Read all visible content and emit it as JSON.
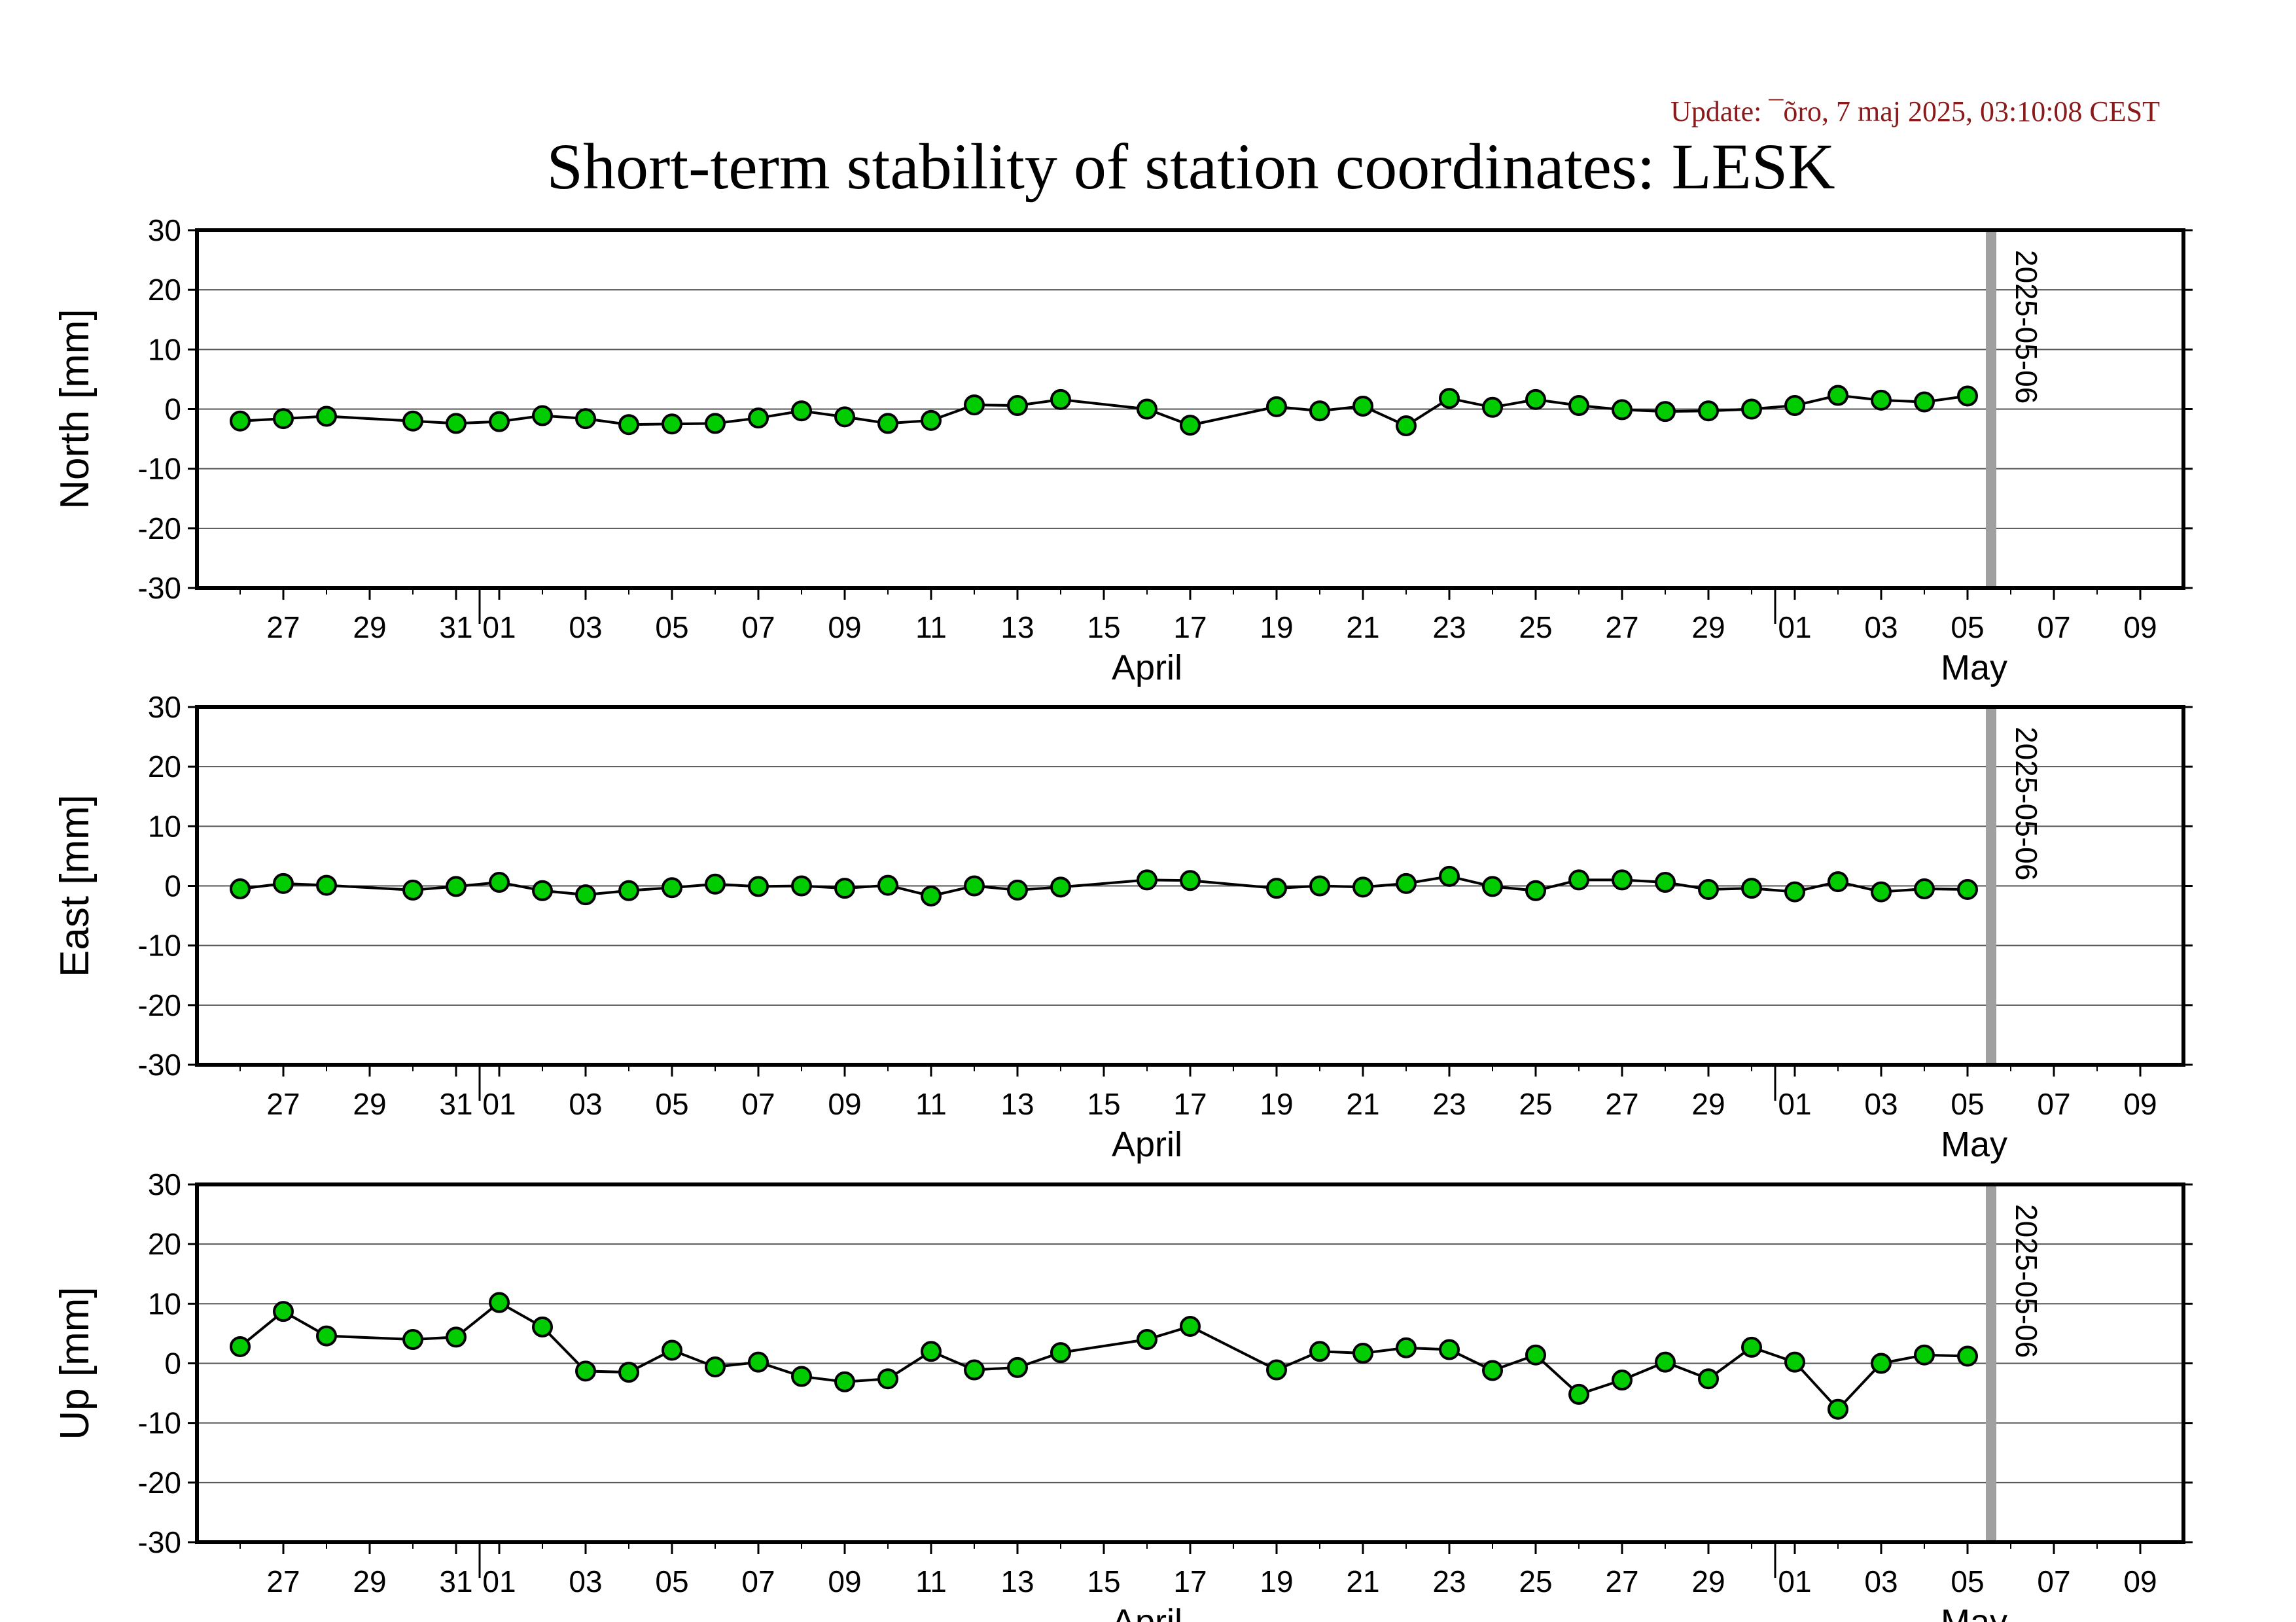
{
  "update_text": "Update: ¯õro, 7 maj 2025, 03:10:08 CEST",
  "title": "Short-term stability of station coordinates: LESK",
  "colors": {
    "update_text": "#8b1a1a",
    "marker_fill": "#00cc00",
    "marker_edge": "#000000",
    "line": "#000000",
    "grid": "#555555",
    "date_marker": "#a0a0a0"
  },
  "chart_data": [
    {
      "type": "line",
      "ylabel": "North [mm]",
      "ylim": [
        -30,
        30
      ],
      "yticks": [
        30,
        20,
        10,
        0,
        -10,
        -20,
        -30
      ],
      "xlim": [
        "2025-03-25",
        "2025-05-10"
      ],
      "x_tick_labels": [
        "27",
        "29",
        "31",
        "01",
        "03",
        "05",
        "07",
        "09",
        "11",
        "13",
        "15",
        "17",
        "19",
        "21",
        "23",
        "25",
        "27",
        "29",
        "01",
        "03",
        "05",
        "07",
        "09"
      ],
      "month_labels": [
        "April",
        "May"
      ],
      "grid": "horizontal",
      "marker_date": "2025-05-06",
      "x": [
        "2025-03-26",
        "2025-03-27",
        "2025-03-28",
        "2025-03-30",
        "2025-03-31",
        "2025-04-01",
        "2025-04-02",
        "2025-04-03",
        "2025-04-04",
        "2025-04-05",
        "2025-04-06",
        "2025-04-07",
        "2025-04-08",
        "2025-04-09",
        "2025-04-10",
        "2025-04-11",
        "2025-04-12",
        "2025-04-13",
        "2025-04-14",
        "2025-04-16",
        "2025-04-17",
        "2025-04-19",
        "2025-04-20",
        "2025-04-21",
        "2025-04-22",
        "2025-04-23",
        "2025-04-24",
        "2025-04-25",
        "2025-04-26",
        "2025-04-27",
        "2025-04-28",
        "2025-04-29",
        "2025-04-30",
        "2025-05-01",
        "2025-05-02",
        "2025-05-03",
        "2025-05-04",
        "2025-05-05"
      ],
      "values": [
        -2.0,
        -1.6,
        -1.2,
        -2.0,
        -2.4,
        -2.1,
        -1.1,
        -1.6,
        -2.6,
        -2.5,
        -2.4,
        -1.5,
        -0.3,
        -1.3,
        -2.4,
        -1.9,
        0.7,
        0.6,
        1.6,
        0.0,
        -2.7,
        0.4,
        -0.3,
        0.5,
        -2.8,
        1.8,
        0.3,
        1.6,
        0.6,
        -0.1,
        -0.4,
        -0.3,
        0.0,
        0.6,
        2.3,
        1.5,
        1.2,
        2.2
      ]
    },
    {
      "type": "line",
      "ylabel": "East [mm]",
      "ylim": [
        -30,
        30
      ],
      "yticks": [
        30,
        20,
        10,
        0,
        -10,
        -20,
        -30
      ],
      "xlim": [
        "2025-03-25",
        "2025-05-10"
      ],
      "x_tick_labels": [
        "27",
        "29",
        "31",
        "01",
        "03",
        "05",
        "07",
        "09",
        "11",
        "13",
        "15",
        "17",
        "19",
        "21",
        "23",
        "25",
        "27",
        "29",
        "01",
        "03",
        "05",
        "07",
        "09"
      ],
      "month_labels": [
        "April",
        "May"
      ],
      "grid": "horizontal",
      "marker_date": "2025-05-06",
      "x": [
        "2025-03-26",
        "2025-03-27",
        "2025-03-28",
        "2025-03-30",
        "2025-03-31",
        "2025-04-01",
        "2025-04-02",
        "2025-04-03",
        "2025-04-04",
        "2025-04-05",
        "2025-04-06",
        "2025-04-07",
        "2025-04-08",
        "2025-04-09",
        "2025-04-10",
        "2025-04-11",
        "2025-04-12",
        "2025-04-13",
        "2025-04-14",
        "2025-04-16",
        "2025-04-17",
        "2025-04-19",
        "2025-04-20",
        "2025-04-21",
        "2025-04-22",
        "2025-04-23",
        "2025-04-24",
        "2025-04-25",
        "2025-04-26",
        "2025-04-27",
        "2025-04-28",
        "2025-04-29",
        "2025-04-30",
        "2025-05-01",
        "2025-05-02",
        "2025-05-03",
        "2025-05-04",
        "2025-05-05"
      ],
      "values": [
        -0.5,
        0.4,
        0.1,
        -0.7,
        -0.1,
        0.6,
        -0.8,
        -1.5,
        -0.8,
        -0.3,
        0.3,
        -0.1,
        0.0,
        -0.4,
        0.1,
        -1.7,
        0.0,
        -0.7,
        -0.2,
        1.0,
        0.9,
        -0.4,
        0.0,
        -0.2,
        0.4,
        1.6,
        -0.1,
        -0.8,
        1.0,
        1.0,
        0.6,
        -0.6,
        -0.4,
        -1.0,
        0.7,
        -1.0,
        -0.5,
        -0.6
      ]
    },
    {
      "type": "line",
      "ylabel": "Up [mm]",
      "ylim": [
        -30,
        30
      ],
      "yticks": [
        30,
        20,
        10,
        0,
        -10,
        -20,
        -30
      ],
      "xlim": [
        "2025-03-25",
        "2025-05-10"
      ],
      "x_tick_labels": [
        "27",
        "29",
        "31",
        "01",
        "03",
        "05",
        "07",
        "09",
        "11",
        "13",
        "15",
        "17",
        "19",
        "21",
        "23",
        "25",
        "27",
        "29",
        "01",
        "03",
        "05",
        "07",
        "09"
      ],
      "month_labels": [
        "April",
        "May"
      ],
      "grid": "horizontal",
      "marker_date": "2025-05-06",
      "x": [
        "2025-03-26",
        "2025-03-27",
        "2025-03-28",
        "2025-03-30",
        "2025-03-31",
        "2025-04-01",
        "2025-04-02",
        "2025-04-03",
        "2025-04-04",
        "2025-04-05",
        "2025-04-06",
        "2025-04-07",
        "2025-04-08",
        "2025-04-09",
        "2025-04-10",
        "2025-04-11",
        "2025-04-12",
        "2025-04-13",
        "2025-04-14",
        "2025-04-16",
        "2025-04-17",
        "2025-04-19",
        "2025-04-20",
        "2025-04-21",
        "2025-04-22",
        "2025-04-23",
        "2025-04-24",
        "2025-04-25",
        "2025-04-26",
        "2025-04-27",
        "2025-04-28",
        "2025-04-29",
        "2025-04-30",
        "2025-05-01",
        "2025-05-02",
        "2025-05-03",
        "2025-05-04",
        "2025-05-05"
      ],
      "values": [
        2.8,
        8.7,
        4.6,
        4.0,
        4.4,
        10.2,
        6.1,
        -1.3,
        -1.5,
        2.2,
        -0.6,
        0.2,
        -2.2,
        -3.1,
        -2.6,
        2.0,
        -1.1,
        -0.7,
        1.8,
        4.0,
        6.2,
        -1.1,
        2.0,
        1.7,
        2.6,
        2.3,
        -1.2,
        1.4,
        -5.2,
        -2.8,
        0.2,
        -2.6,
        2.7,
        0.2,
        -7.7,
        0.0,
        1.4,
        1.2
      ]
    }
  ]
}
